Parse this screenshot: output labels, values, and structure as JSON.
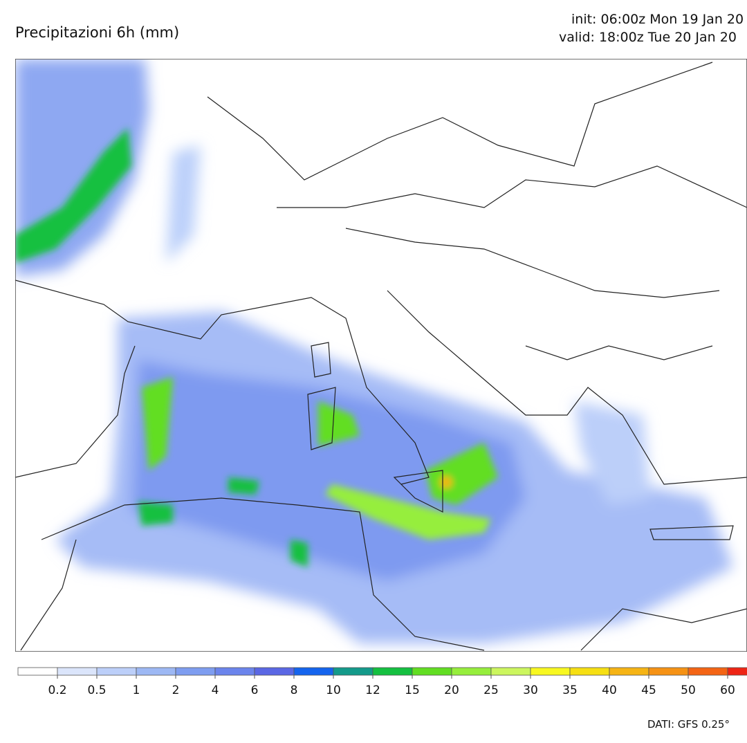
{
  "header": {
    "title": "Precipitazioni 6h (mm)",
    "init": "init: 06:00z Mon 19 Jan 20",
    "valid": "valid: 18:00z Tue 20 Jan 20"
  },
  "legend": {
    "labels": [
      0.2,
      0.5,
      1,
      2,
      4,
      6,
      8,
      10,
      12,
      15,
      20,
      25,
      30,
      35,
      40,
      45,
      50,
      60
    ],
    "colors": [
      "#ffffff",
      "#dbe5fb",
      "#bccff9",
      "#9db8f4",
      "#7e9df0",
      "#6b84ec",
      "#5a67e4",
      "#1464ee",
      "#139a8a",
      "#14c040",
      "#62de22",
      "#96ee3c",
      "#ccf65e",
      "#f8f820",
      "#f6df12",
      "#f6b414",
      "#f69214",
      "#f46414",
      "#ee2414"
    ]
  },
  "footer": {
    "source": "DATI: GFS 0.25°"
  }
}
